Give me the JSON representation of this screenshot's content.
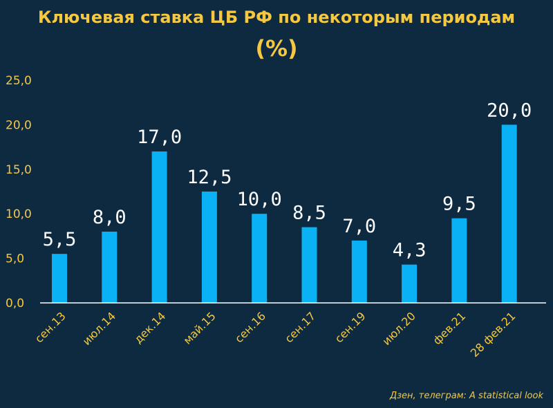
{
  "title": "Ключевая ставка ЦБ РФ по некоторым периодам",
  "subtitle": "(%)",
  "source": "Дзен, телеграм: A statistical look",
  "colors": {
    "background": "#0d2a40",
    "bar": "#0bb1f5",
    "text_accent": "#f5c842",
    "data_label": "#ffffff",
    "axis": "#ffffff"
  },
  "chart_data": {
    "type": "bar",
    "title": "Ключевая ставка ЦБ РФ по некоторым периодам",
    "subtitle": "(%)",
    "categories": [
      "сен.13",
      "июл.14",
      "дек.14",
      "май.15",
      "сен.16",
      "сен.17",
      "сен.19",
      "июл.20",
      "фев.21",
      "28 фев.21"
    ],
    "values": [
      5.5,
      8.0,
      17.0,
      12.5,
      10.0,
      8.5,
      7.0,
      4.3,
      9.5,
      20.0
    ],
    "value_labels": [
      "5,5",
      "8,0",
      "17,0",
      "12,5",
      "10,0",
      "8,5",
      "7,0",
      "4,3",
      "9,5",
      "20,0"
    ],
    "ylim": [
      0,
      25
    ],
    "yticks": [
      0,
      5,
      10,
      15,
      20,
      25
    ],
    "ytick_labels": [
      "0,0",
      "5,0",
      "10,0",
      "15,0",
      "20,0",
      "25,0"
    ],
    "grid": false,
    "legend": "none"
  }
}
